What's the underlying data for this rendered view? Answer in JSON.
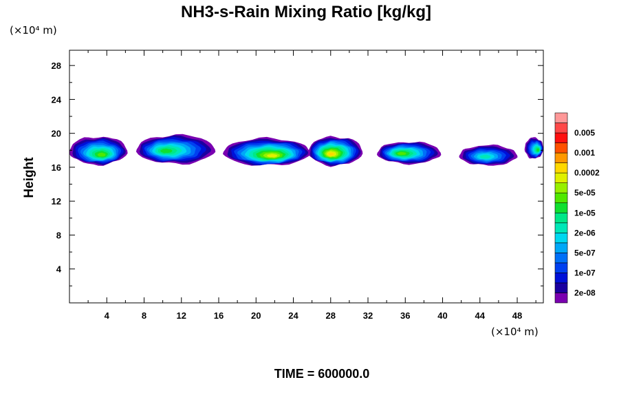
{
  "chart_data": {
    "type": "heatmap",
    "title": "NH3-s-Rain Mixing Ratio [kg/kg]",
    "ylabel": "Height",
    "x_unit": "(×10⁴ m)",
    "y_unit": "(×10⁴ m)",
    "xlim": [
      0,
      50.8
    ],
    "ylim": [
      0,
      29.8
    ],
    "x_ticks": [
      4,
      8,
      12,
      16,
      20,
      24,
      28,
      32,
      36,
      40,
      44,
      48
    ],
    "y_ticks": [
      4,
      8,
      12,
      16,
      20,
      24,
      28
    ],
    "time_label": "TIME = 600000.0",
    "colorbar": {
      "levels": [
        "2e-08",
        "",
        "1e-07",
        "",
        "5e-07",
        "",
        "2e-06",
        "",
        "1e-05",
        "",
        "5e-05",
        "",
        "0.0002",
        "",
        "0.001",
        "",
        "0.005",
        ""
      ],
      "labels": [
        "2e-08",
        "1e-07",
        "5e-07",
        "2e-06",
        "1e-05",
        "5e-05",
        "0.0002",
        "0.001",
        "0.005"
      ],
      "colors": [
        "#7a00b0",
        "#1a00a0",
        "#0010d8",
        "#0040f0",
        "#0070f8",
        "#00a8f8",
        "#00d8f0",
        "#00e8b8",
        "#00e888",
        "#10e030",
        "#50e800",
        "#98f000",
        "#e0f000",
        "#ffd800",
        "#ff9800",
        "#ff5000",
        "#ff1010",
        "#ff4848",
        "#ff9898"
      ]
    },
    "clouds": [
      {
        "x": [
          0,
          6.2
        ],
        "y_base": 16.3,
        "y_top": 19.6,
        "peak_x": 3.5,
        "peak_y": 17.4,
        "max_level": 10
      },
      {
        "x": [
          7.2,
          15.6
        ],
        "y_base": 16.4,
        "y_top": 19.8,
        "peak_x": 10.2,
        "peak_y": 17.9,
        "max_level": 9
      },
      {
        "x": [
          16.5,
          25.8
        ],
        "y_base": 16.2,
        "y_top": 19.4,
        "peak_x": 21.8,
        "peak_y": 17.3,
        "max_level": 12
      },
      {
        "x": [
          25.6,
          31.4
        ],
        "y_base": 16.2,
        "y_top": 19.6,
        "peak_x": 28.0,
        "peak_y": 17.5,
        "max_level": 13
      },
      {
        "x": [
          33.0,
          39.8
        ],
        "y_base": 16.4,
        "y_top": 19.0,
        "peak_x": 35.5,
        "peak_y": 17.6,
        "max_level": 10
      },
      {
        "x": [
          41.8,
          48.0
        ],
        "y_base": 16.2,
        "y_top": 18.6,
        "peak_x": 44.5,
        "peak_y": 17.2,
        "max_level": 7
      },
      {
        "x": [
          48.8,
          50.8
        ],
        "y_base": 17.0,
        "y_top": 19.5,
        "peak_x": 50.3,
        "peak_y": 18.0,
        "max_level": 9
      }
    ]
  }
}
